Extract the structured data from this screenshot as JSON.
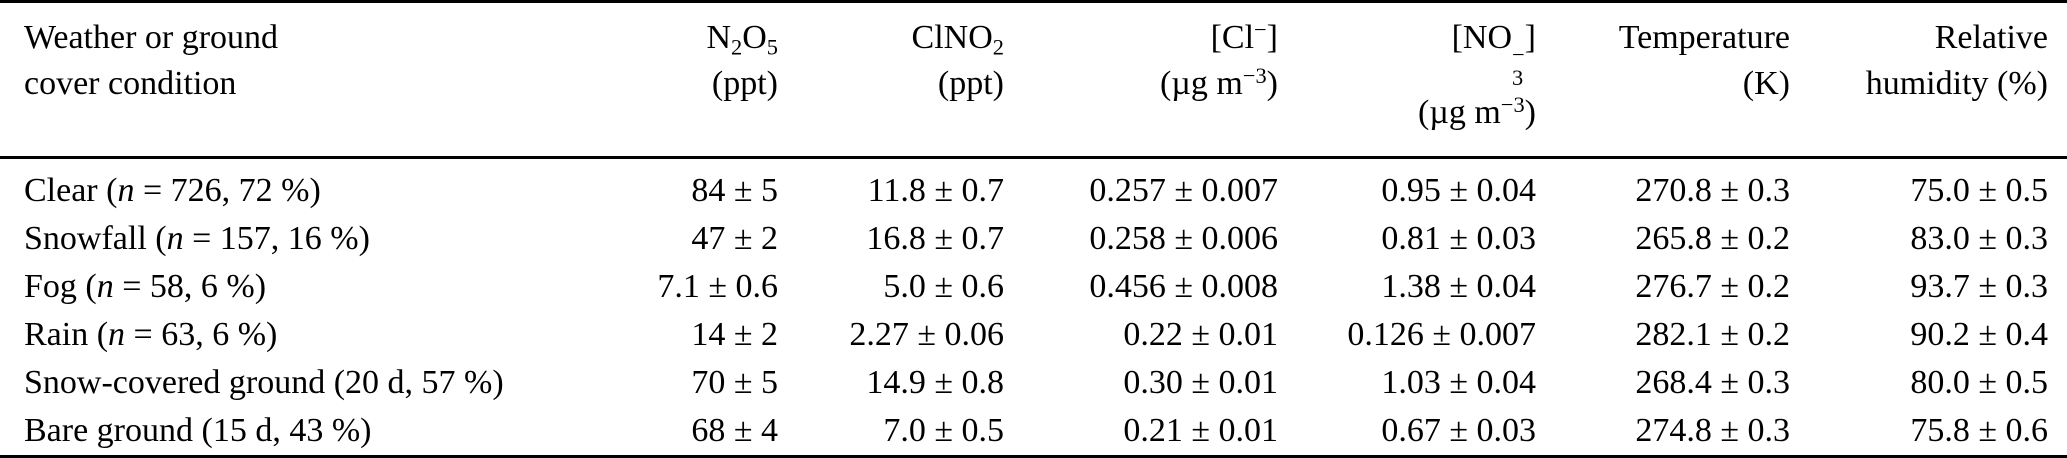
{
  "colors": {
    "text": "#000000",
    "background": "#ffffff",
    "rule": "#000000"
  },
  "table": {
    "columns": [
      {
        "id": "condition",
        "align": "left",
        "header_line1": [
          {
            "t": "Weather or ground"
          }
        ],
        "header_line2": [
          {
            "t": "cover condition"
          }
        ]
      },
      {
        "id": "n2o5",
        "align": "right",
        "header_line1": [
          {
            "t": "N"
          },
          {
            "sub": "2"
          },
          {
            "t": "O"
          },
          {
            "sub": "5"
          }
        ],
        "header_line2": [
          {
            "t": "(ppt)"
          }
        ]
      },
      {
        "id": "clno2",
        "align": "right",
        "header_line1": [
          {
            "t": "ClNO"
          },
          {
            "sub": "2"
          }
        ],
        "header_line2": [
          {
            "t": "(ppt)"
          }
        ]
      },
      {
        "id": "cl_minus",
        "align": "right",
        "header_line1": [
          {
            "t": "[Cl"
          },
          {
            "sup": "−"
          },
          {
            "t": "]"
          }
        ],
        "header_line2": [
          {
            "t": "(µg m"
          },
          {
            "sup": "−3"
          },
          {
            "t": ")"
          }
        ]
      },
      {
        "id": "no3_minus",
        "align": "right",
        "header_line1": [
          {
            "t": "[NO"
          },
          {
            "stack": {
              "sup": "−",
              "sub": "3"
            }
          },
          {
            "t": "]"
          }
        ],
        "header_line2": [
          {
            "t": "(µg m"
          },
          {
            "sup": "−3"
          },
          {
            "t": ")"
          }
        ]
      },
      {
        "id": "temperature",
        "align": "right",
        "header_line1": [
          {
            "t": "Temperature"
          }
        ],
        "header_line2": [
          {
            "t": "(K)"
          }
        ]
      },
      {
        "id": "relative_humidity",
        "align": "right",
        "header_line1": [
          {
            "t": "Relative"
          }
        ],
        "header_line2": [
          {
            "t": "humidity (%)"
          }
        ]
      }
    ],
    "rows": [
      {
        "label": [
          {
            "t": "Clear ("
          },
          {
            "i": "n"
          },
          {
            "t": " = 726, 72 %)"
          }
        ],
        "values": [
          "84 ± 5",
          "11.8 ± 0.7",
          "0.257 ± 0.007",
          "0.95 ± 0.04",
          "270.8 ± 0.3",
          "75.0 ± 0.5"
        ]
      },
      {
        "label": [
          {
            "t": "Snowfall ("
          },
          {
            "i": "n"
          },
          {
            "t": " = 157, 16 %)"
          }
        ],
        "values": [
          "47 ± 2",
          "16.8 ± 0.7",
          "0.258 ± 0.006",
          "0.81 ± 0.03",
          "265.8 ± 0.2",
          "83.0 ± 0.3"
        ]
      },
      {
        "label": [
          {
            "t": "Fog ("
          },
          {
            "i": "n"
          },
          {
            "t": " = 58, 6 %)"
          }
        ],
        "values": [
          "7.1 ± 0.6",
          "5.0 ± 0.6",
          "0.456 ± 0.008",
          "1.38 ± 0.04",
          "276.7 ± 0.2",
          "93.7 ± 0.3"
        ]
      },
      {
        "label": [
          {
            "t": "Rain ("
          },
          {
            "i": "n"
          },
          {
            "t": " = 63, 6 %)"
          }
        ],
        "values": [
          "14 ± 2",
          "2.27 ± 0.06",
          "0.22 ± 0.01",
          "0.126 ± 0.007",
          "282.1 ± 0.2",
          "90.2 ± 0.4"
        ]
      },
      {
        "label": [
          {
            "t": "Snow-covered ground (20 d, 57 %)"
          }
        ],
        "values": [
          "70 ± 5",
          "14.9 ± 0.8",
          "0.30 ± 0.01",
          "1.03 ± 0.04",
          "268.4 ± 0.3",
          "80.0 ± 0.5"
        ]
      },
      {
        "label": [
          {
            "t": "Bare ground (15 d, 43 %)"
          }
        ],
        "values": [
          "68 ± 4",
          "7.0 ± 0.5",
          "0.21 ± 0.01",
          "0.67 ± 0.03",
          "274.8 ± 0.3",
          "75.8 ± 0.6"
        ]
      }
    ]
  }
}
